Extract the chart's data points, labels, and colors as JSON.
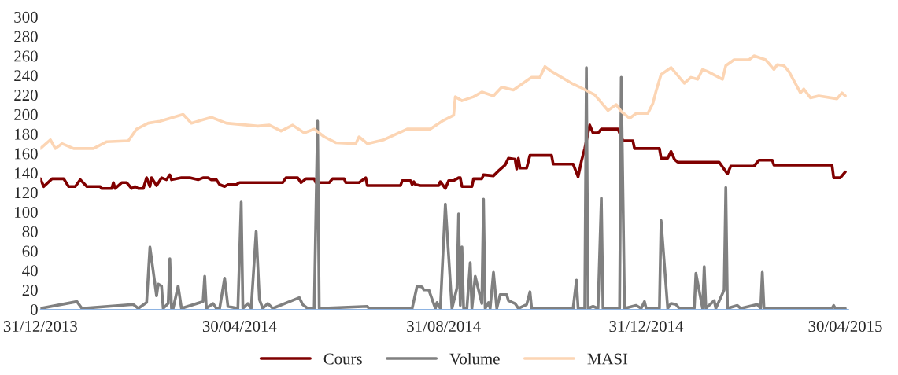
{
  "chart_data": {
    "type": "line",
    "xlim": [
      "2013-12-31",
      "2015-05-02"
    ],
    "xticks": [
      {
        "value": "2013-12-31",
        "label": "31/12/2013"
      },
      {
        "value": "2014-04-30",
        "label": "30/04/2014"
      },
      {
        "value": "2014-08-31",
        "label": "31/08/2014"
      },
      {
        "value": "2014-12-31",
        "label": "31/12/2014"
      },
      {
        "value": "2015-04-30",
        "label": "30/04/2015"
      }
    ],
    "ylim": [
      0,
      300
    ],
    "yticks": [
      0,
      20,
      40,
      60,
      80,
      100,
      120,
      140,
      160,
      180,
      200,
      220,
      240,
      260,
      280,
      300
    ],
    "grid": false,
    "legend": "bottom",
    "marker": "none",
    "line_style": "solid",
    "series": [
      {
        "name": "Cours",
        "color": "#800000",
        "x": [
          "2013-12-31",
          "2014-01-02",
          "2014-01-07",
          "2014-01-14",
          "2014-01-17",
          "2014-01-21",
          "2014-01-24",
          "2014-01-28",
          "2014-02-05",
          "2014-02-06",
          "2014-02-12",
          "2014-02-13",
          "2014-02-14",
          "2014-02-18",
          "2014-02-21",
          "2014-02-24",
          "2014-02-26",
          "2014-02-28",
          "2014-03-03",
          "2014-03-05",
          "2014-03-07",
          "2014-03-08",
          "2014-03-11",
          "2014-03-14",
          "2014-03-17",
          "2014-03-19",
          "2014-03-20",
          "2014-03-26",
          "2014-03-31",
          "2014-04-05",
          "2014-04-08",
          "2014-04-11",
          "2014-04-13",
          "2014-04-16",
          "2014-04-18",
          "2014-04-21",
          "2014-04-23",
          "2014-04-28",
          "2014-04-30",
          "2014-05-26",
          "2014-05-28",
          "2014-06-04",
          "2014-06-06",
          "2014-06-09",
          "2014-06-14",
          "2014-06-15",
          "2014-06-23",
          "2014-06-25",
          "2014-07-02",
          "2014-07-03",
          "2014-07-11",
          "2014-07-15",
          "2014-07-16",
          "2014-08-05",
          "2014-08-06",
          "2014-08-11",
          "2014-08-12",
          "2014-08-13",
          "2014-08-14",
          "2014-08-17",
          "2014-08-28",
          "2014-08-29",
          "2014-09-01",
          "2014-09-03",
          "2014-09-06",
          "2014-09-09",
          "2014-09-10",
          "2014-09-11",
          "2014-09-17",
          "2014-09-18",
          "2014-09-23",
          "2014-09-24",
          "2014-09-30",
          "2014-10-03",
          "2014-10-07",
          "2014-10-09",
          "2014-10-13",
          "2014-10-14",
          "2014-10-15",
          "2014-10-16",
          "2014-10-20",
          "2014-10-22",
          "2014-11-04",
          "2014-11-05",
          "2014-11-17",
          "2014-11-20",
          "2014-11-22",
          "2014-11-24",
          "2014-11-27",
          "2014-11-29",
          "2014-12-02",
          "2014-12-04",
          "2014-12-14",
          "2014-12-17",
          "2014-12-23",
          "2014-12-24",
          "2015-01-08",
          "2015-01-09",
          "2015-01-13",
          "2015-01-15",
          "2015-01-17",
          "2015-01-19",
          "2015-02-13",
          "2015-02-18",
          "2015-02-20",
          "2015-03-06",
          "2015-03-09",
          "2015-03-17",
          "2015-03-18",
          "2015-04-22",
          "2015-04-23",
          "2015-04-27",
          "2015-04-30"
        ],
        "values": [
          134,
          126,
          134,
          134,
          126,
          126,
          133,
          126,
          126,
          124,
          124,
          130,
          124,
          130,
          130,
          124,
          126,
          124,
          124,
          135,
          126,
          135,
          127,
          135,
          133,
          138,
          133,
          135,
          135,
          133,
          135,
          135,
          133,
          133,
          128,
          126,
          128,
          128,
          130,
          130,
          135,
          135,
          130,
          134,
          134,
          130,
          130,
          134,
          134,
          130,
          130,
          135,
          127,
          127,
          132,
          132,
          128,
          131,
          128,
          127,
          127,
          131,
          124,
          132,
          132,
          135,
          135,
          126,
          126,
          134,
          134,
          138,
          137,
          142,
          148,
          155,
          154,
          144,
          155,
          145,
          145,
          158,
          158,
          149,
          149,
          136,
          152,
          165,
          189,
          181,
          181,
          185,
          185,
          173,
          173,
          165,
          165,
          155,
          155,
          162,
          154,
          151,
          151,
          139,
          147,
          147,
          153,
          153,
          148,
          148,
          135,
          135,
          141
        ]
      },
      {
        "name": "Volume",
        "color": "#808080",
        "x": [
          "2013-12-31",
          "2014-01-22",
          "2014-01-25",
          "2014-02-25",
          "2014-02-28",
          "2014-03-05",
          "2014-03-07",
          "2014-03-11",
          "2014-03-12",
          "2014-03-14",
          "2014-03-15",
          "2014-03-18",
          "2014-03-19",
          "2014-03-20",
          "2014-03-21",
          "2014-03-24",
          "2014-03-26",
          "2014-04-08",
          "2014-04-09",
          "2014-04-10",
          "2014-04-14",
          "2014-04-16",
          "2014-04-18",
          "2014-04-21",
          "2014-04-23",
          "2014-04-29",
          "2014-05-01",
          "2014-05-02",
          "2014-05-05",
          "2014-05-07",
          "2014-05-10",
          "2014-05-12",
          "2014-05-14",
          "2014-05-17",
          "2014-05-20",
          "2014-06-05",
          "2014-06-07",
          "2014-06-10",
          "2014-06-14",
          "2014-06-16",
          "2014-06-17",
          "2014-07-16",
          "2014-07-17",
          "2014-08-12",
          "2014-08-15",
          "2014-08-18",
          "2014-08-19",
          "2014-08-22",
          "2014-08-26",
          "2014-08-27",
          "2014-08-29",
          "2014-09-01",
          "2014-09-05",
          "2014-09-08",
          "2014-09-09",
          "2014-09-10",
          "2014-09-11",
          "2014-09-12",
          "2014-09-14",
          "2014-09-16",
          "2014-09-17",
          "2014-09-19",
          "2014-09-23",
          "2014-09-24",
          "2014-09-25",
          "2014-09-27",
          "2014-09-28",
          "2014-09-30",
          "2014-10-02",
          "2014-10-04",
          "2014-10-08",
          "2014-10-09",
          "2014-10-13",
          "2014-10-15",
          "2014-10-20",
          "2014-10-22",
          "2014-10-23",
          "2014-11-17",
          "2014-11-19",
          "2014-11-20",
          "2014-11-24",
          "2014-11-25",
          "2014-11-26",
          "2014-11-29",
          "2014-12-02",
          "2014-12-04",
          "2014-12-05",
          "2014-12-15",
          "2014-12-16",
          "2014-12-18",
          "2014-12-25",
          "2014-12-28",
          "2014-12-30",
          "2014-12-31",
          "2015-01-08",
          "2015-01-09",
          "2015-01-13",
          "2015-01-15",
          "2015-01-18",
          "2015-01-20",
          "2015-01-29",
          "2015-01-30",
          "2015-02-03",
          "2015-02-04",
          "2015-02-05",
          "2015-02-10",
          "2015-02-11",
          "2015-02-16",
          "2015-02-17",
          "2015-02-18",
          "2015-02-24",
          "2015-02-26",
          "2015-03-08",
          "2015-03-10",
          "2015-03-11",
          "2015-03-12",
          "2015-04-22",
          "2015-04-23",
          "2015-04-24",
          "2015-04-30"
        ],
        "values": [
          1,
          8,
          1,
          5,
          1,
          7,
          64,
          14,
          26,
          24,
          1,
          6,
          52,
          1,
          1,
          24,
          1,
          8,
          34,
          1,
          6,
          1,
          1,
          32,
          3,
          1,
          110,
          1,
          6,
          1,
          80,
          10,
          1,
          6,
          1,
          12,
          5,
          1,
          1,
          193,
          1,
          3,
          1,
          1,
          24,
          23,
          20,
          20,
          1,
          7,
          1,
          108,
          1,
          22,
          98,
          4,
          64,
          1,
          1,
          48,
          1,
          34,
          6,
          113,
          1,
          7,
          1,
          38,
          1,
          15,
          15,
          9,
          6,
          1,
          5,
          18,
          1,
          1,
          30,
          1,
          1,
          248,
          1,
          3,
          1,
          114,
          1,
          1,
          238,
          1,
          4,
          1,
          8,
          1,
          1,
          91,
          1,
          6,
          5,
          1,
          1,
          37,
          1,
          44,
          1,
          9,
          1,
          20,
          125,
          1,
          4,
          1,
          5,
          1,
          38,
          1,
          1,
          4,
          1,
          1
        ]
      },
      {
        "name": "MASI",
        "color": "#fcd5b4",
        "x": [
          "2013-12-31",
          "2014-01-06",
          "2014-01-09",
          "2014-01-13",
          "2014-01-20",
          "2014-02-01",
          "2014-02-09",
          "2014-02-22",
          "2014-02-27",
          "2014-03-06",
          "2014-03-13",
          "2014-03-27",
          "2014-04-01",
          "2014-04-13",
          "2014-04-22",
          "2014-05-11",
          "2014-05-18",
          "2014-05-25",
          "2014-06-01",
          "2014-06-08",
          "2014-06-14",
          "2014-06-20",
          "2014-06-27",
          "2014-07-09",
          "2014-07-11",
          "2014-07-16",
          "2014-07-26",
          "2014-08-09",
          "2014-08-23",
          "2014-08-30",
          "2014-09-06",
          "2014-09-07",
          "2014-09-11",
          "2014-09-18",
          "2014-09-23",
          "2014-09-30",
          "2014-10-05",
          "2014-10-12",
          "2014-10-23",
          "2014-10-28",
          "2014-10-31",
          "2014-11-04",
          "2014-11-16",
          "2014-11-21",
          "2014-11-30",
          "2014-12-08",
          "2014-12-13",
          "2014-12-16",
          "2014-12-21",
          "2014-12-25",
          "2015-01-01",
          "2015-01-04",
          "2015-01-06",
          "2015-01-09",
          "2015-01-15",
          "2015-01-20",
          "2015-01-23",
          "2015-01-27",
          "2015-01-31",
          "2015-02-03",
          "2015-02-06",
          "2015-02-15",
          "2015-02-17",
          "2015-02-22",
          "2015-03-03",
          "2015-03-06",
          "2015-03-13",
          "2015-03-18",
          "2015-03-20",
          "2015-03-24",
          "2015-03-27",
          "2015-04-03",
          "2015-04-05",
          "2015-04-09",
          "2015-04-14",
          "2015-04-25",
          "2015-04-28",
          "2015-04-30"
        ],
        "values": [
          165,
          174,
          165,
          170,
          165,
          165,
          172,
          173,
          185,
          191,
          193,
          200,
          191,
          197,
          191,
          188,
          189,
          183,
          189,
          181,
          185,
          177,
          171,
          170,
          177,
          170,
          174,
          185,
          185,
          193,
          199,
          218,
          214,
          218,
          223,
          219,
          228,
          225,
          238,
          238,
          249,
          244,
          232,
          228,
          220,
          204,
          210,
          203,
          196,
          201,
          201,
          211,
          224,
          241,
          248,
          238,
          232,
          238,
          236,
          246,
          244,
          236,
          250,
          256,
          256,
          260,
          256,
          246,
          251,
          250,
          244,
          222,
          226,
          217,
          219,
          216,
          222,
          219
        ]
      }
    ]
  }
}
